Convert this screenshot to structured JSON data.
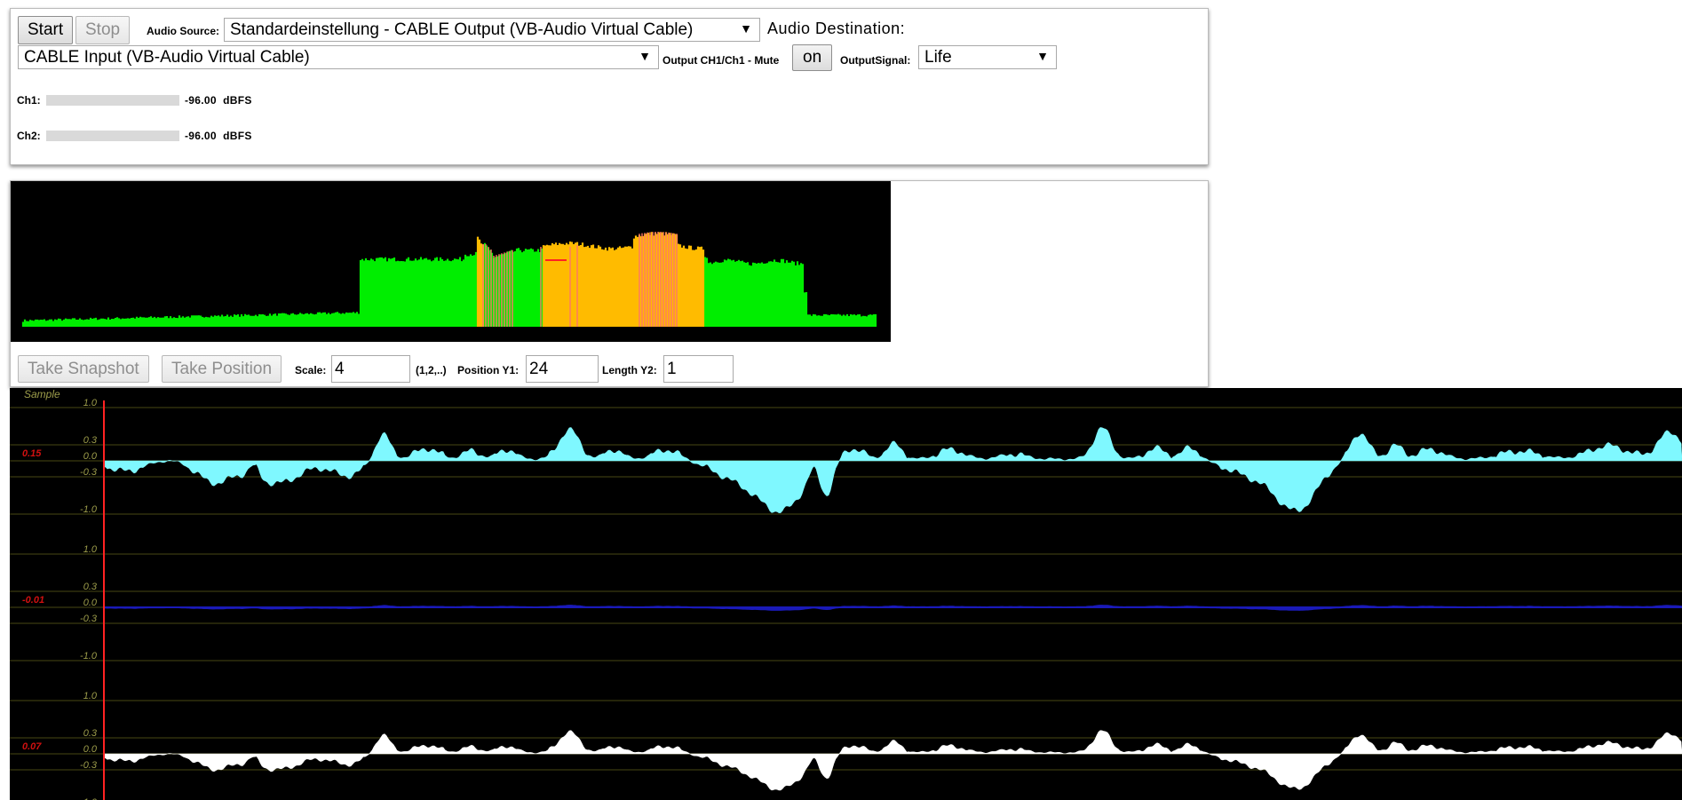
{
  "controls": {
    "start_label": "Start",
    "stop_label": "Stop",
    "audio_source_label": "Audio Source:",
    "audio_source_value": "Standardeinstellung - CABLE Output (VB-Audio Virtual Cable)",
    "audio_destination_label": "Audio Destination:",
    "audio_destination_value": "CABLE Input (VB-Audio Virtual Cable)",
    "output_label": "Output CH1/Ch1 - Mute",
    "mute_button_label": "on",
    "output_signal_label": "OutputSignal:",
    "output_signal_value": "Life",
    "dropdown_arrow": "▼"
  },
  "meters": {
    "ch1_label": "Ch1:",
    "ch1_value": "-96.00",
    "ch1_level": 0,
    "ch2_label": "Ch2:",
    "ch2_value": "-96.00",
    "ch2_level": 0,
    "unit": "dBFS"
  },
  "snapshot": {
    "take_snapshot_label": "Take Snapshot",
    "take_position_label": "Take Position",
    "scale_label": "Scale:",
    "scale_value": "4",
    "scale_hint": "(1,2,..)",
    "position_label": "Position Y1:",
    "position_value": "24",
    "length_label": "Length Y2:",
    "length_value": "1"
  },
  "colors": {
    "spectrum_green": "#00ee00",
    "spectrum_orange": "#ffbb00",
    "spectrum_pink": "#ff7766",
    "marker_red": "#ff2222",
    "grid_line": "#3a3a10",
    "tick_label": "#9c9c4a",
    "trace1": "#7ff8ff",
    "trace2": "#1a1ab8",
    "trace3": "#ffffff",
    "value_red": "#d01010"
  },
  "scope": {
    "title": "Sample",
    "ticks": [
      "1.0",
      "0.3",
      "0.0",
      "-0.3",
      "-1.0"
    ],
    "tick_values": [
      1.0,
      0.3,
      0.0,
      -0.3,
      -1.0
    ],
    "channels": [
      {
        "value_label": "0.15",
        "color_key": "trace1",
        "amplitude": 1.0
      },
      {
        "value_label": "-0.01",
        "color_key": "trace2",
        "amplitude": 0.05
      },
      {
        "value_label": "0.07",
        "color_key": "trace3",
        "amplitude": 0.7
      }
    ]
  }
}
